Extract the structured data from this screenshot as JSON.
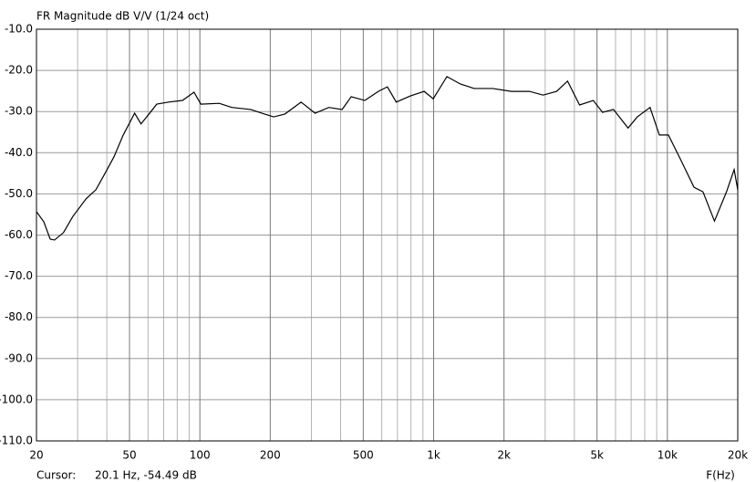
{
  "chart_data": {
    "type": "line",
    "title": "FR Magnitude dB V/V (1/24 oct)",
    "x_label": "F(Hz)",
    "cursor_label": "Cursor:",
    "cursor_readout": "20.1 Hz, -54.49 dB",
    "log_x": true,
    "grid": true,
    "xlim": [
      20,
      20000
    ],
    "ylim": [
      -110,
      -10
    ],
    "xticks": [
      {
        "value": 20,
        "label": "20"
      },
      {
        "value": 50,
        "label": "50"
      },
      {
        "value": 100,
        "label": "100"
      },
      {
        "value": 200,
        "label": "200"
      },
      {
        "value": 500,
        "label": "500"
      },
      {
        "value": 1000,
        "label": "1k"
      },
      {
        "value": 2000,
        "label": "2k"
      },
      {
        "value": 5000,
        "label": "5k"
      },
      {
        "value": 10000,
        "label": "10k"
      },
      {
        "value": 20000,
        "label": "20k"
      }
    ],
    "xminor": [
      30,
      40,
      60,
      70,
      80,
      90,
      300,
      400,
      600,
      700,
      800,
      900,
      3000,
      4000,
      6000,
      7000,
      8000,
      9000
    ],
    "yticks": [
      {
        "value": -10,
        "label": "-10.0"
      },
      {
        "value": -20,
        "label": "-20.0"
      },
      {
        "value": -30,
        "label": "-30.0"
      },
      {
        "value": -40,
        "label": "-40.0"
      },
      {
        "value": -50,
        "label": "-50.0"
      },
      {
        "value": -60,
        "label": "-60.0"
      },
      {
        "value": -70,
        "label": "-70.0"
      },
      {
        "value": -80,
        "label": "-80.0"
      },
      {
        "value": -90,
        "label": "-90.0"
      },
      {
        "value": -100,
        "label": "-100.0"
      },
      {
        "value": -110,
        "label": "-110.0"
      }
    ],
    "series": [
      {
        "color": "#000000",
        "x": [
          20,
          21.5,
          22.9,
          23.9,
          26.1,
          28.6,
          32.6,
          35.9,
          39.3,
          42.9,
          47.0,
          52.6,
          56,
          60.2,
          65.4,
          73.6,
          84.3,
          94.4,
          101,
          121,
          137,
          165,
          189,
          207,
          231,
          271,
          311,
          356,
          406,
          444,
          508,
          580,
          634,
          692,
          796,
          911,
          996,
          1140,
          1300,
          1490,
          1790,
          2150,
          2570,
          2940,
          3360,
          3740,
          4210,
          4820,
          5280,
          5880,
          6790,
          7430,
          8430,
          9240,
          10100,
          11400,
          13000,
          14200,
          15900,
          17900,
          19300,
          20000
        ],
        "values": [
          -54.3,
          -56.8,
          -61,
          -61.2,
          -59.4,
          -55.5,
          -51.2,
          -49,
          -45,
          -41,
          -35.7,
          -30.4,
          -33,
          -30.8,
          -28.2,
          -27.7,
          -27.3,
          -25.3,
          -28.2,
          -28,
          -29,
          -29.5,
          -30.6,
          -31.3,
          -30.6,
          -27.7,
          -30.4,
          -29,
          -29.5,
          -26.4,
          -27.3,
          -25.1,
          -24,
          -27.7,
          -26.2,
          -25.1,
          -26.9,
          -21.5,
          -23.3,
          -24.4,
          -24.4,
          -25.1,
          -25.1,
          -26,
          -25.1,
          -22.6,
          -28.4,
          -27.3,
          -30.2,
          -29.5,
          -34,
          -31.3,
          -29,
          -35.7,
          -35.7,
          -41.7,
          -48.4,
          -49.5,
          -56.6,
          -49.5,
          -44.1,
          -49
        ]
      }
    ]
  }
}
